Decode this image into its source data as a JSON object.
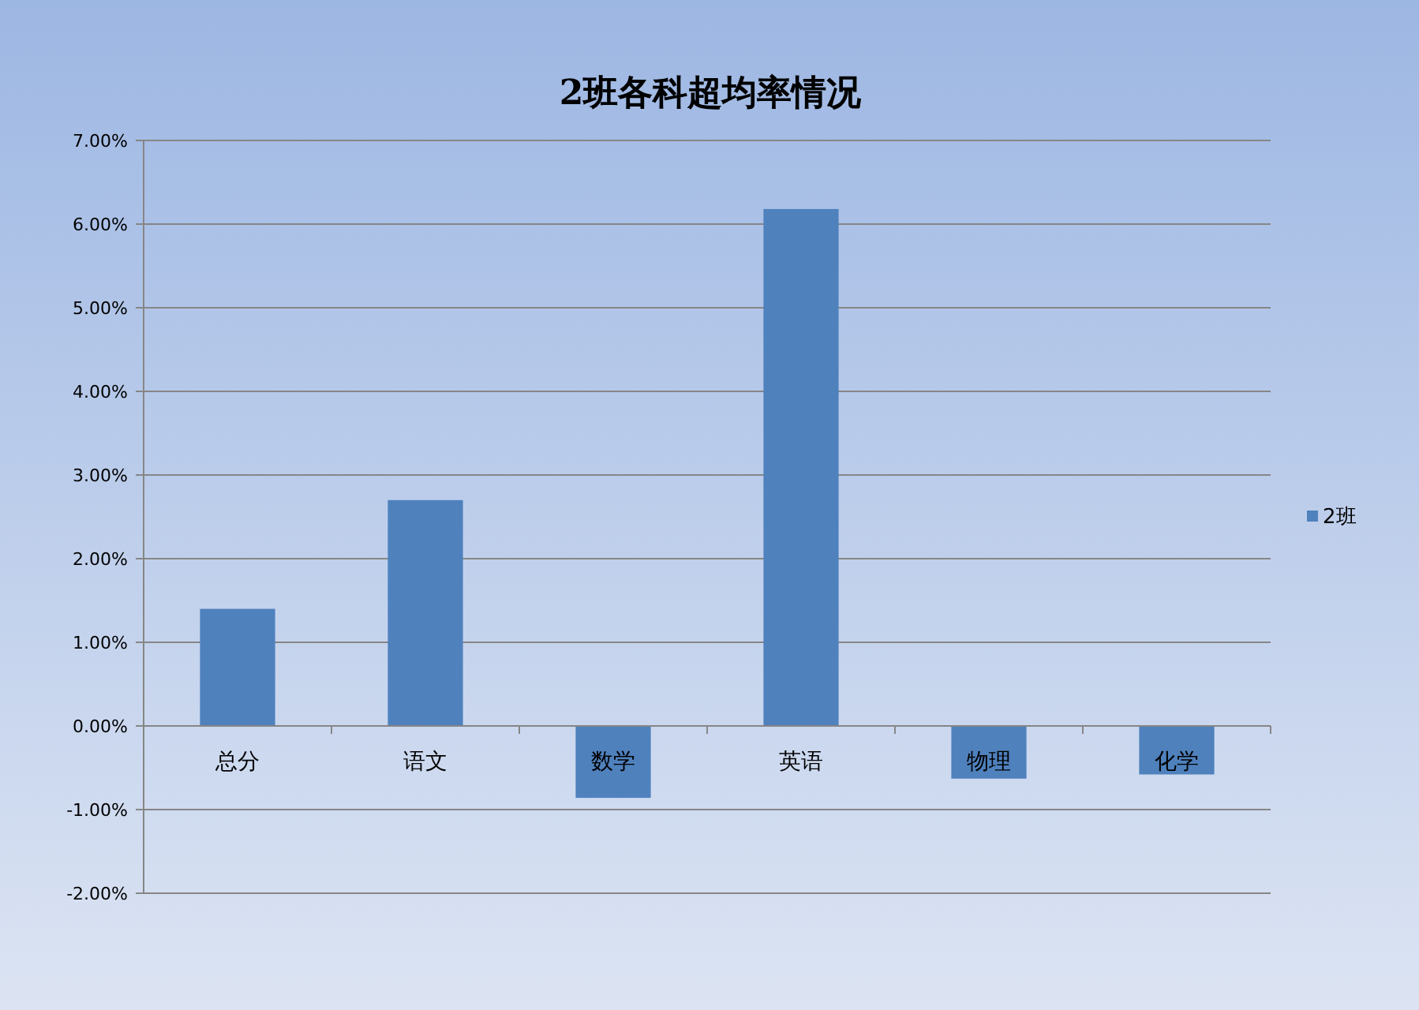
{
  "chart_data": {
    "type": "bar",
    "title": "2班各科超均率情况",
    "categories": [
      "总分",
      "语文",
      "数学",
      "英语",
      "物理",
      "化学"
    ],
    "series": [
      {
        "name": "2班",
        "color": "#4f81bd",
        "values": [
          1.4,
          2.7,
          -0.86,
          6.18,
          -0.63,
          -0.58
        ]
      }
    ],
    "ylim": [
      -2,
      7
    ],
    "yticks": [
      {
        "value": -2,
        "label": "-2.00%"
      },
      {
        "value": -1,
        "label": "-1.00%"
      },
      {
        "value": 0,
        "label": "0.00%"
      },
      {
        "value": 1,
        "label": "1.00%"
      },
      {
        "value": 2,
        "label": "2.00%"
      },
      {
        "value": 3,
        "label": "3.00%"
      },
      {
        "value": 4,
        "label": "4.00%"
      },
      {
        "value": 5,
        "label": "5.00%"
      },
      {
        "value": 6,
        "label": "6.00%"
      },
      {
        "value": 7,
        "label": "7.00%"
      }
    ],
    "grid": "y",
    "legend": "right"
  }
}
